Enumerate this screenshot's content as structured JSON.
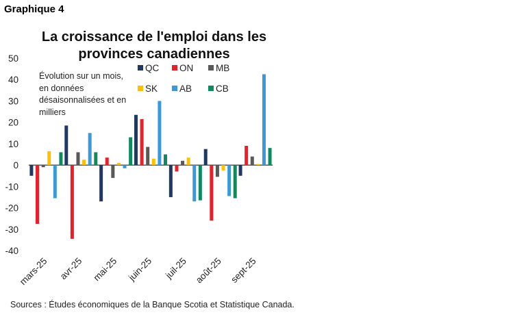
{
  "header": {
    "graph_label": "Graphique 4"
  },
  "footer": {
    "source": "Sources : Études économiques de la Banque Scotia et Statistique Canada."
  },
  "chart_data": {
    "type": "bar",
    "title": "La croissance de l'emploi dans les provinces canadiennes",
    "annotation": "Évolution sur un mois, en données désaisonnalisées et en milliers",
    "categories": [
      "mars-25",
      "avr-25",
      "mai-25",
      "juin-25",
      "juil-25",
      "août-25",
      "sept-25"
    ],
    "ylim": [
      -40,
      50
    ],
    "yticks": [
      50,
      40,
      30,
      20,
      10,
      0,
      -10,
      -20,
      -30,
      -40
    ],
    "grid": false,
    "legend_position": "top-right",
    "series": [
      {
        "name": "QC",
        "color": "#1f3864",
        "values": [
          -5,
          18.5,
          -17,
          23.5,
          -15,
          7.5,
          -5
        ]
      },
      {
        "name": "ON",
        "color": "#e8202a",
        "values": [
          -27.5,
          -34.5,
          3.5,
          21.5,
          -3,
          -26,
          9
        ]
      },
      {
        "name": "MB",
        "color": "#595959",
        "values": [
          -1,
          6,
          -6,
          8.5,
          2,
          -5.5,
          4
        ]
      },
      {
        "name": "SK",
        "color": "#ffc000",
        "values": [
          6.5,
          2.5,
          1,
          3,
          3.5,
          -2.5,
          0.5
        ]
      },
      {
        "name": "AB",
        "color": "#3a9ad9",
        "values": [
          -15.5,
          15,
          -1.5,
          30,
          -17,
          -14.5,
          42.5
        ]
      },
      {
        "name": "CB",
        "color": "#0e8a5f",
        "values": [
          6,
          6,
          13,
          5,
          -16.5,
          -15.5,
          8
        ]
      }
    ]
  }
}
